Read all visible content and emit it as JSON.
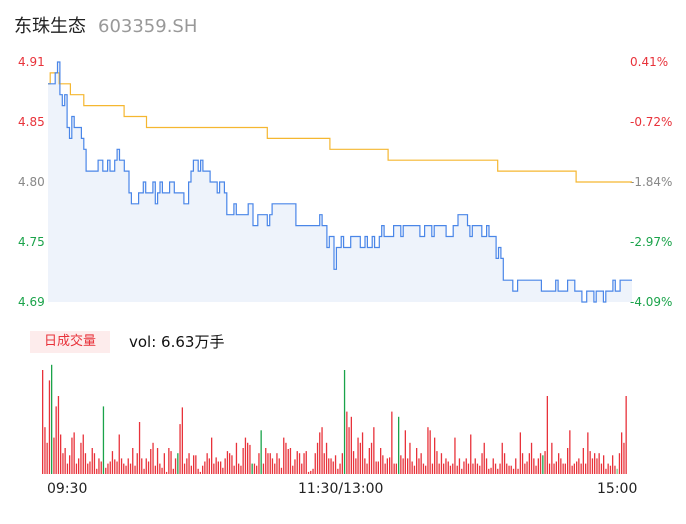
{
  "header": {
    "name": "东珠生态",
    "code": "603359.SH"
  },
  "badge": "日成交量",
  "volume": {
    "prefix": "vol: ",
    "value": "6.63万手"
  },
  "colors": {
    "price": "#4a86e8",
    "avg": "#f5b731",
    "up": "#e8323a",
    "down": "#1aa34a",
    "flat": "#888888",
    "area": "#eef3fb"
  },
  "chart_data": {
    "type": "line",
    "y_left_ticks": [
      "4.91",
      "4.85",
      "4.80",
      "4.75",
      "4.69"
    ],
    "y_right_ticks": [
      "0.41%",
      "-0.72%",
      "-1.84%",
      "-2.97%",
      "-4.09%"
    ],
    "x_ticks": [
      "09:30",
      "11:30/13:00",
      "15:00"
    ],
    "ylim": [
      4.69,
      4.91
    ],
    "prev_close": 4.89,
    "series": [
      {
        "key": "price",
        "values": [
          4.89,
          4.89,
          4.89,
          4.9,
          4.91,
          4.88,
          4.87,
          4.88,
          4.85,
          4.84,
          4.86,
          4.85,
          4.85,
          4.85,
          4.84,
          4.83,
          4.81,
          4.81,
          4.81,
          4.81,
          4.81,
          4.82,
          4.82,
          4.81,
          4.81,
          4.82,
          4.81,
          4.81,
          4.82,
          4.83,
          4.82,
          4.82,
          4.81,
          4.81,
          4.79,
          4.78,
          4.78,
          4.78,
          4.79,
          4.79,
          4.8,
          4.79,
          4.79,
          4.79,
          4.8,
          4.78,
          4.79,
          4.8,
          4.79,
          4.79,
          4.79,
          4.8,
          4.8,
          4.79,
          4.79,
          4.79,
          4.79,
          4.78,
          4.78,
          4.8,
          4.81,
          4.82,
          4.82,
          4.81,
          4.82,
          4.81,
          4.81,
          4.81,
          4.8,
          4.8,
          4.8,
          4.79,
          4.8,
          4.8,
          4.79,
          4.77,
          4.77,
          4.77,
          4.78,
          4.77,
          4.77,
          4.77,
          4.77,
          4.77,
          4.78,
          4.78,
          4.76,
          4.76,
          4.77,
          4.77,
          4.77,
          4.77,
          4.76,
          4.77,
          4.78,
          4.78,
          4.78,
          4.78,
          4.78,
          4.78,
          4.78,
          4.78,
          4.78,
          4.78,
          4.76,
          4.76,
          4.76,
          4.76,
          4.76,
          4.76,
          4.76,
          4.76,
          4.76,
          4.76,
          4.77,
          4.76,
          4.76,
          4.74,
          4.75,
          4.75,
          4.72,
          4.74,
          4.74,
          4.75,
          4.74,
          4.74,
          4.74,
          4.75,
          4.75,
          4.75,
          4.75,
          4.74,
          4.74,
          4.75,
          4.74,
          4.74,
          4.75,
          4.74,
          4.74,
          4.75,
          4.76,
          4.75,
          4.75,
          4.75,
          4.75,
          4.76,
          4.76,
          4.76,
          4.75,
          4.76,
          4.76,
          4.76,
          4.76,
          4.76,
          4.76,
          4.76,
          4.75,
          4.75,
          4.76,
          4.76,
          4.76,
          4.75,
          4.76,
          4.76,
          4.76,
          4.76,
          4.76,
          4.75,
          4.75,
          4.75,
          4.76,
          4.76,
          4.77,
          4.77,
          4.77,
          4.77,
          4.76,
          4.75,
          4.76,
          4.76,
          4.76,
          4.76,
          4.75,
          4.75,
          4.76,
          4.75,
          4.75,
          4.75,
          4.73,
          4.74,
          4.73,
          4.71,
          4.71,
          4.71,
          4.71,
          4.7,
          4.7,
          4.71,
          4.71,
          4.71,
          4.71,
          4.71,
          4.71,
          4.71,
          4.71,
          4.71,
          4.71,
          4.7,
          4.7,
          4.7,
          4.7,
          4.7,
          4.7,
          4.71,
          4.7,
          4.7,
          4.7,
          4.7,
          4.71,
          4.71,
          4.71,
          4.7,
          4.7,
          4.7,
          4.69,
          4.69,
          4.7,
          4.7,
          4.7,
          4.69,
          4.7,
          4.7,
          4.7,
          4.69,
          4.7,
          4.7,
          4.7,
          4.71,
          4.7,
          4.7,
          4.71,
          4.71,
          4.71,
          4.71,
          4.71
        ]
      },
      {
        "key": "avg",
        "values": [
          4.89,
          4.9,
          4.9,
          4.9,
          4.9,
          4.89,
          4.89,
          4.89,
          4.89,
          4.89,
          4.88,
          4.88,
          4.88,
          4.88,
          4.88,
          4.88,
          4.87,
          4.87,
          4.87,
          4.87,
          4.87,
          4.87,
          4.87,
          4.87,
          4.87,
          4.87,
          4.87,
          4.87,
          4.87,
          4.87,
          4.87,
          4.87,
          4.87,
          4.87,
          4.86,
          4.86,
          4.86,
          4.86,
          4.86,
          4.86,
          4.86,
          4.86,
          4.86,
          4.86,
          4.85,
          4.85,
          4.85,
          4.85,
          4.85,
          4.85,
          4.85,
          4.85,
          4.85,
          4.85,
          4.85,
          4.85,
          4.85,
          4.85,
          4.85,
          4.85,
          4.85,
          4.85,
          4.85,
          4.85,
          4.85,
          4.85,
          4.85,
          4.85,
          4.85,
          4.85,
          4.85,
          4.85,
          4.85,
          4.85,
          4.85,
          4.85,
          4.85,
          4.85,
          4.85,
          4.85,
          4.85,
          4.85,
          4.85,
          4.85,
          4.85,
          4.85,
          4.85,
          4.85,
          4.85,
          4.85,
          4.85,
          4.85,
          4.85,
          4.85,
          4.85,
          4.85,
          4.85,
          4.85,
          4.84,
          4.84,
          4.84,
          4.84,
          4.84,
          4.84,
          4.84,
          4.84,
          4.84,
          4.84,
          4.84,
          4.84,
          4.84,
          4.84,
          4.84,
          4.84,
          4.84,
          4.84,
          4.84,
          4.84,
          4.84,
          4.84,
          4.84,
          4.84,
          4.84,
          4.84,
          4.84,
          4.84,
          4.83,
          4.83,
          4.83,
          4.83,
          4.83,
          4.83,
          4.83,
          4.83,
          4.83,
          4.83,
          4.83,
          4.83,
          4.83,
          4.83,
          4.83,
          4.83,
          4.83,
          4.83,
          4.83,
          4.83,
          4.83,
          4.83,
          4.83,
          4.83,
          4.83,
          4.83,
          4.82,
          4.82,
          4.82,
          4.82,
          4.82,
          4.82,
          4.82,
          4.82,
          4.82,
          4.82,
          4.82,
          4.82,
          4.82,
          4.82,
          4.82,
          4.82,
          4.82,
          4.82,
          4.82,
          4.82,
          4.82,
          4.82,
          4.82,
          4.82,
          4.82,
          4.82,
          4.82,
          4.82,
          4.82,
          4.82,
          4.82,
          4.82,
          4.82,
          4.82,
          4.82,
          4.82,
          4.82,
          4.82,
          4.82,
          4.82,
          4.82,
          4.82,
          4.82,
          4.82,
          4.82,
          4.82,
          4.82,
          4.82,
          4.82,
          4.81,
          4.81,
          4.81,
          4.81,
          4.81,
          4.81,
          4.81,
          4.81,
          4.81,
          4.81,
          4.81,
          4.81,
          4.81,
          4.81,
          4.81,
          4.81,
          4.81,
          4.81,
          4.81,
          4.81,
          4.81,
          4.81,
          4.81,
          4.81,
          4.81,
          4.81,
          4.81,
          4.81,
          4.81,
          4.81,
          4.81,
          4.81,
          4.81,
          4.81,
          4.81,
          4.8,
          4.8,
          4.8,
          4.8,
          4.8,
          4.8,
          4.8,
          4.8,
          4.8,
          4.8,
          4.8,
          4.8,
          4.8,
          4.8,
          4.8,
          4.8,
          4.8,
          4.8,
          4.8,
          4.8,
          4.8,
          4.8,
          4.8,
          4.8,
          4.8
        ]
      }
    ],
    "volume_ylim": [
      0,
      100
    ],
    "volume_values": [
      100,
      45,
      30,
      90,
      105,
      35,
      65,
      75,
      38,
      20,
      25,
      10,
      18,
      35,
      40,
      10,
      15,
      30,
      38,
      20,
      10,
      12,
      25,
      20,
      5,
      15,
      12,
      65,
      6,
      10,
      12,
      22,
      14,
      12,
      38,
      15,
      10,
      8,
      15,
      10,
      25,
      8,
      20,
      50,
      15,
      5,
      15,
      12,
      24,
      30,
      8,
      25,
      10,
      6,
      20,
      2,
      25,
      22,
      5,
      15,
      20,
      48,
      64,
      10,
      15,
      20,
      8,
      18,
      18,
      5,
      2,
      8,
      12,
      20,
      15,
      35,
      10,
      16,
      12,
      12,
      6,
      15,
      22,
      20,
      18,
      8,
      30,
      10,
      8,
      25,
      35,
      30,
      28,
      10,
      10,
      8,
      20,
      42,
      10,
      25,
      20,
      20,
      15,
      10,
      20,
      15,
      6,
      35,
      30,
      24,
      25,
      8,
      14,
      22,
      20,
      10,
      20,
      22,
      2,
      3,
      5,
      20,
      30,
      40,
      45,
      20,
      30,
      15,
      15,
      12,
      18,
      5,
      10,
      20,
      100,
      60,
      45,
      55,
      22,
      15,
      35,
      30,
      40,
      15,
      10,
      25,
      30,
      45,
      12,
      12,
      25,
      18,
      10,
      15,
      16,
      60,
      10,
      10,
      55,
      18,
      15,
      42,
      15,
      30,
      12,
      8,
      25,
      15,
      20,
      10,
      8,
      45,
      42,
      10,
      35,
      22,
      10,
      20,
      10,
      15,
      12,
      8,
      10,
      35,
      8,
      15,
      5,
      12,
      15,
      10,
      38,
      10,
      15,
      10,
      8,
      20,
      30,
      15,
      5,
      6,
      15,
      10,
      5,
      10,
      30,
      20,
      10,
      8,
      8,
      5,
      15,
      5,
      40,
      20,
      10,
      12,
      20,
      30,
      15,
      8,
      15,
      20,
      18,
      22,
      75,
      10,
      30,
      10,
      12,
      20,
      15,
      10,
      10,
      25,
      42,
      8,
      10,
      12,
      15,
      10,
      25,
      10,
      40,
      22,
      15,
      20,
      15,
      20,
      10,
      18,
      5,
      10,
      8,
      18,
      8,
      5,
      20,
      40,
      30,
      75
    ],
    "volume_dirs": [
      "u",
      "u",
      "u",
      "u",
      "d",
      "u",
      "u",
      "u",
      "u",
      "u",
      "u",
      "u",
      "u",
      "u",
      "u",
      "u",
      "u",
      "u",
      "u",
      "u",
      "u",
      "u",
      "u",
      "u",
      "u",
      "u",
      "u",
      "d",
      "u",
      "u",
      "u",
      "u",
      "u",
      "u",
      "u",
      "u",
      "u",
      "u",
      "u",
      "u",
      "u",
      "u",
      "u",
      "u",
      "u",
      "u",
      "u",
      "u",
      "u",
      "u",
      "u",
      "u",
      "u",
      "u",
      "u",
      "u",
      "u",
      "u",
      "u",
      "u",
      "d",
      "u",
      "u",
      "u",
      "u",
      "u",
      "u",
      "u",
      "u",
      "u",
      "u",
      "u",
      "u",
      "u",
      "u",
      "u",
      "u",
      "u",
      "u",
      "u",
      "u",
      "u",
      "u",
      "u",
      "u",
      "u",
      "u",
      "u",
      "u",
      "u",
      "u",
      "u",
      "u",
      "d",
      "u",
      "u",
      "u",
      "d",
      "u",
      "u",
      "u",
      "u",
      "u",
      "u",
      "u",
      "u",
      "u",
      "u",
      "u",
      "u",
      "u",
      "u",
      "u",
      "u",
      "u",
      "u",
      "u",
      "u",
      "u",
      "u",
      "u",
      "u",
      "u",
      "u",
      "u",
      "u",
      "u",
      "u",
      "u",
      "u",
      "u",
      "u",
      "u",
      "u",
      "d",
      "u",
      "u",
      "u",
      "u",
      "u",
      "u",
      "u",
      "u",
      "u",
      "u",
      "u",
      "u",
      "u",
      "u",
      "u",
      "u",
      "u",
      "u",
      "u",
      "u",
      "u",
      "u",
      "u",
      "d",
      "u",
      "u",
      "u",
      "u",
      "u",
      "u",
      "u",
      "u",
      "u",
      "u",
      "u",
      "u",
      "u",
      "u",
      "u",
      "u",
      "u",
      "u",
      "u",
      "u",
      "u",
      "u",
      "u",
      "u",
      "u",
      "u",
      "u",
      "u",
      "u",
      "u",
      "u",
      "u",
      "u",
      "u",
      "u",
      "u",
      "u",
      "u",
      "u",
      "u",
      "u",
      "u",
      "u",
      "u",
      "u",
      "u",
      "u",
      "u",
      "u",
      "u",
      "u",
      "u",
      "u",
      "u",
      "u",
      "u",
      "u",
      "u",
      "u",
      "u",
      "u",
      "u",
      "u",
      "d",
      "u",
      "u",
      "u",
      "u",
      "u",
      "u",
      "u",
      "u",
      "u",
      "u",
      "u",
      "u",
      "u",
      "u",
      "u",
      "u",
      "u",
      "u",
      "u",
      "u",
      "u",
      "u",
      "u",
      "u",
      "u",
      "u",
      "u",
      "u",
      "u",
      "u",
      "u",
      "u",
      "f"
    ]
  }
}
